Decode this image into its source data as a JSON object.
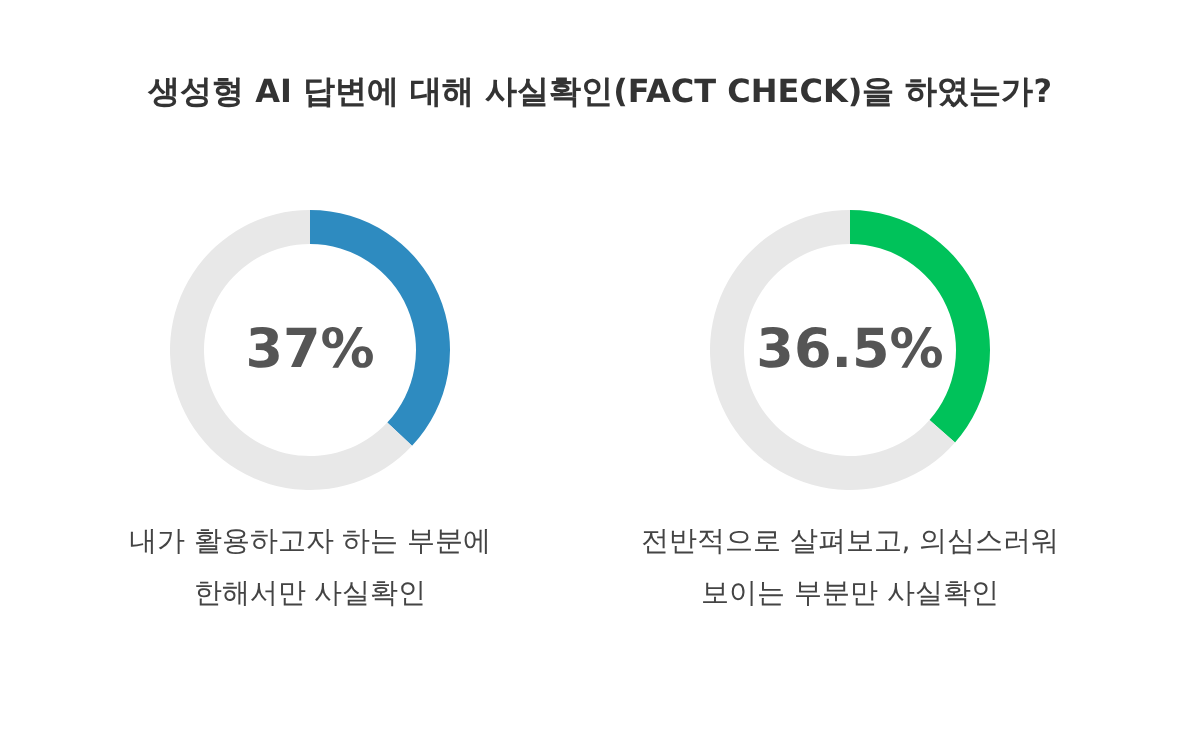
{
  "chart_data": [
    {
      "type": "donut",
      "title": "생성형 AI 답변에 대해 사실확인(FACT CHECK)을 하였는가?",
      "categories": [
        null,
        null
      ],
      "annotations": [
        "내가 활용하고자 하는 부분에 한해서만 사실확인"
      ],
      "values": [
        37,
        63
      ],
      "colors": [
        "#2e8bc0",
        "#e8e8e8"
      ],
      "value_labels": [
        "37%",
        null
      ]
    },
    {
      "type": "donut",
      "categories": [
        null,
        null
      ],
      "annotations": [
        "전반적으로 살펴보고, 의심스러워 보이는 부분만 사실확인"
      ],
      "values": [
        36.5,
        63.5
      ],
      "colors": [
        "#00c25a",
        "#e8e8e8"
      ],
      "value_labels": [
        "36.5%",
        null
      ]
    }
  ]
}
